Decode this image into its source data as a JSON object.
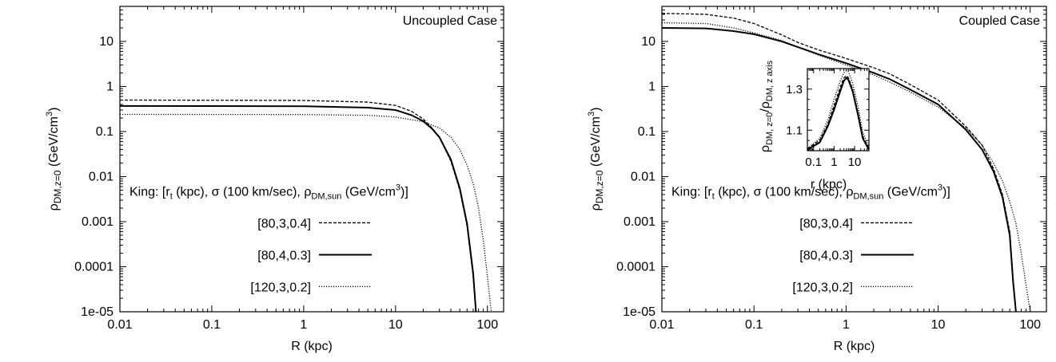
{
  "chart_data": [
    {
      "type": "line",
      "title": "Uncoupled Case",
      "xlabel": "R (kpc)",
      "ylabel": "ρDM,z=0 (GeV/cm3)",
      "ylabel_parts": {
        "main": "ρ",
        "sub": "DM,z=0",
        "unit": "(GeV/cm",
        "sup": "3",
        "close": ")"
      },
      "x_scale": "log",
      "y_scale": "log",
      "xlim": [
        0.01,
        150
      ],
      "ylim": [
        1e-05,
        60
      ],
      "x_ticks": [
        0.01,
        0.1,
        1,
        10,
        100
      ],
      "x_tick_labels": [
        "0.01",
        "0.1",
        "1",
        "10",
        "100"
      ],
      "y_ticks": [
        1e-05,
        0.0001,
        0.001,
        0.01,
        0.1,
        1,
        10
      ],
      "y_tick_labels": [
        "1e-05",
        "0.0001",
        "0.001",
        "0.01",
        "0.1",
        "1",
        "10"
      ],
      "legend_title": "King: [rt (kpc), σ (100 km/sec), ρDM,sun (GeV/cm3)]",
      "legend_title_parts": {
        "a": "King: [r",
        "a_sub": "t",
        "b": " (kpc), σ (100 km/sec), ρ",
        "b_sub": "DM,sun",
        "c": " (GeV/cm",
        "c_sup": "3",
        "d": ")]"
      },
      "legend_placement": "center-left",
      "series": [
        {
          "name": "[80,3,0.4]",
          "style": "dashed",
          "points": [
            [
              0.01,
              0.5
            ],
            [
              1,
              0.49
            ],
            [
              5,
              0.45
            ],
            [
              10,
              0.38
            ],
            [
              15,
              0.28
            ],
            [
              20,
              0.19
            ],
            [
              25,
              0.12
            ],
            [
              30,
              0.075
            ],
            [
              40,
              0.022
            ],
            [
              50,
              0.005
            ],
            [
              60,
              0.0008
            ],
            [
              70,
              6e-05
            ],
            [
              75,
              1e-05
            ]
          ]
        },
        {
          "name": "[80,4,0.3]",
          "style": "solid",
          "points": [
            [
              0.01,
              0.37
            ],
            [
              1,
              0.365
            ],
            [
              5,
              0.34
            ],
            [
              10,
              0.3
            ],
            [
              15,
              0.23
            ],
            [
              20,
              0.17
            ],
            [
              25,
              0.115
            ],
            [
              30,
              0.075
            ],
            [
              40,
              0.024
            ],
            [
              50,
              0.0055
            ],
            [
              60,
              0.0009
            ],
            [
              70,
              7e-05
            ],
            [
              75,
              1e-05
            ]
          ]
        },
        {
          "name": "[120,3,0.2]",
          "style": "dotted",
          "points": [
            [
              0.01,
              0.24
            ],
            [
              1,
              0.238
            ],
            [
              5,
              0.23
            ],
            [
              10,
              0.21
            ],
            [
              20,
              0.165
            ],
            [
              30,
              0.12
            ],
            [
              40,
              0.075
            ],
            [
              50,
              0.04
            ],
            [
              60,
              0.018
            ],
            [
              70,
              0.007
            ],
            [
              80,
              0.002
            ],
            [
              90,
              0.0004
            ],
            [
              100,
              6e-05
            ],
            [
              110,
              1e-05
            ]
          ]
        }
      ]
    },
    {
      "type": "line",
      "title": "Coupled Case",
      "xlabel": "R (kpc)",
      "ylabel": "ρDM,z=0 (GeV/cm3)",
      "ylabel_parts": {
        "main": "ρ",
        "sub": "DM,z=0",
        "unit": "(GeV/cm",
        "sup": "3",
        "close": ")"
      },
      "x_scale": "log",
      "y_scale": "log",
      "xlim": [
        0.01,
        150
      ],
      "ylim": [
        1e-05,
        60
      ],
      "x_ticks": [
        0.01,
        0.1,
        1,
        10,
        100
      ],
      "x_tick_labels": [
        "0.01",
        "0.1",
        "1",
        "10",
        "100"
      ],
      "y_ticks": [
        1e-05,
        0.0001,
        0.001,
        0.01,
        0.1,
        1,
        10
      ],
      "y_tick_labels": [
        "1e-05",
        "0.0001",
        "0.001",
        "0.01",
        "0.1",
        "1",
        "10"
      ],
      "legend_title": "King: [rt (kpc), σ (100 km/sec), ρDM,sun (GeV/cm3)]",
      "legend_title_parts": {
        "a": "King: [r",
        "a_sub": "t",
        "b": " (kpc), σ (100 km/sec), ρ",
        "b_sub": "DM,sun",
        "c": " (GeV/cm",
        "c_sup": "3",
        "d": ")]"
      },
      "legend_placement": "center-left",
      "series": [
        {
          "name": "[80,3,0.4]",
          "style": "dashed",
          "points": [
            [
              0.01,
              42
            ],
            [
              0.03,
              40
            ],
            [
              0.06,
              33
            ],
            [
              0.1,
              25
            ],
            [
              0.2,
              14
            ],
            [
              0.3,
              9.5
            ],
            [
              0.5,
              6.5
            ],
            [
              1,
              4.2
            ],
            [
              2,
              2.6
            ],
            [
              3,
              1.9
            ],
            [
              5,
              1.1
            ],
            [
              10,
              0.5
            ],
            [
              20,
              0.13
            ],
            [
              30,
              0.05
            ],
            [
              40,
              0.015
            ],
            [
              50,
              0.004
            ],
            [
              60,
              0.0006
            ],
            [
              65,
              6e-05
            ],
            [
              70,
              1e-05
            ]
          ]
        },
        {
          "name": "[80,4,0.3]",
          "style": "solid",
          "points": [
            [
              0.01,
              20
            ],
            [
              0.03,
              19.5
            ],
            [
              0.06,
              17
            ],
            [
              0.1,
              14.5
            ],
            [
              0.2,
              10
            ],
            [
              0.3,
              7.5
            ],
            [
              0.5,
              5.2
            ],
            [
              1,
              3.3
            ],
            [
              2,
              2
            ],
            [
              3,
              1.45
            ],
            [
              5,
              0.85
            ],
            [
              10,
              0.4
            ],
            [
              20,
              0.11
            ],
            [
              30,
              0.04
            ],
            [
              40,
              0.013
            ],
            [
              50,
              0.0035
            ],
            [
              60,
              0.0005
            ],
            [
              65,
              5e-05
            ],
            [
              70,
              1e-05
            ]
          ]
        },
        {
          "name": "[120,3,0.2]",
          "style": "dotted",
          "points": [
            [
              0.01,
              26
            ],
            [
              0.03,
              25
            ],
            [
              0.06,
              20
            ],
            [
              0.1,
              15.5
            ],
            [
              0.2,
              10.5
            ],
            [
              0.3,
              7.5
            ],
            [
              0.5,
              5
            ],
            [
              1,
              3
            ],
            [
              2,
              1.8
            ],
            [
              3,
              1.25
            ],
            [
              5,
              0.75
            ],
            [
              10,
              0.35
            ],
            [
              20,
              0.12
            ],
            [
              30,
              0.05
            ],
            [
              40,
              0.02
            ],
            [
              50,
              0.008
            ],
            [
              60,
              0.0028
            ],
            [
              70,
              0.0009
            ],
            [
              80,
              0.0002
            ],
            [
              90,
              4e-05
            ],
            [
              100,
              1e-05
            ]
          ]
        }
      ],
      "inset": {
        "xlabel": "r (kpc)",
        "ylabel": "ρDM, z=0/ρDM, z axis",
        "ylabel_parts": {
          "a": "ρ",
          "a_sub": "DM, z=0",
          "b": "/ρ",
          "b_sub": "DM, z axis"
        },
        "x_scale": "log",
        "xlim": [
          0.05,
          50
        ],
        "ylim": [
          1.0,
          1.4
        ],
        "x_ticks": [
          0.1,
          1,
          10
        ],
        "x_tick_labels": [
          "0.1",
          "1",
          "10"
        ],
        "y_ticks": [
          1.1,
          1.3
        ],
        "y_tick_labels": [
          "1.1",
          "1.3"
        ],
        "series": [
          {
            "name": "[80,3,0.4]",
            "style": "dashed",
            "points": [
              [
                0.05,
                1.01
              ],
              [
                0.2,
                1.05
              ],
              [
                0.5,
                1.13
              ],
              [
                1,
                1.22
              ],
              [
                2,
                1.31
              ],
              [
                3,
                1.355
              ],
              [
                4,
                1.365
              ],
              [
                5,
                1.355
              ],
              [
                8,
                1.3
              ],
              [
                15,
                1.18
              ],
              [
                25,
                1.07
              ],
              [
                50,
                1.01
              ]
            ]
          },
          {
            "name": "[80,4,0.3]",
            "style": "solid",
            "points": [
              [
                0.05,
                1.005
              ],
              [
                0.2,
                1.04
              ],
              [
                0.5,
                1.12
              ],
              [
                1,
                1.2
              ],
              [
                2,
                1.29
              ],
              [
                3,
                1.34
              ],
              [
                4,
                1.355
              ],
              [
                5,
                1.345
              ],
              [
                8,
                1.29
              ],
              [
                15,
                1.17
              ],
              [
                25,
                1.06
              ],
              [
                50,
                1.005
              ]
            ]
          },
          {
            "name": "[120,3,0.2]",
            "style": "dotted",
            "points": [
              [
                0.05,
                1.01
              ],
              [
                0.2,
                1.06
              ],
              [
                0.5,
                1.15
              ],
              [
                1,
                1.25
              ],
              [
                2,
                1.34
              ],
              [
                3,
                1.38
              ],
              [
                4,
                1.39
              ],
              [
                5,
                1.385
              ],
              [
                8,
                1.33
              ],
              [
                15,
                1.21
              ],
              [
                25,
                1.09
              ],
              [
                50,
                1.02
              ]
            ]
          }
        ]
      }
    }
  ]
}
